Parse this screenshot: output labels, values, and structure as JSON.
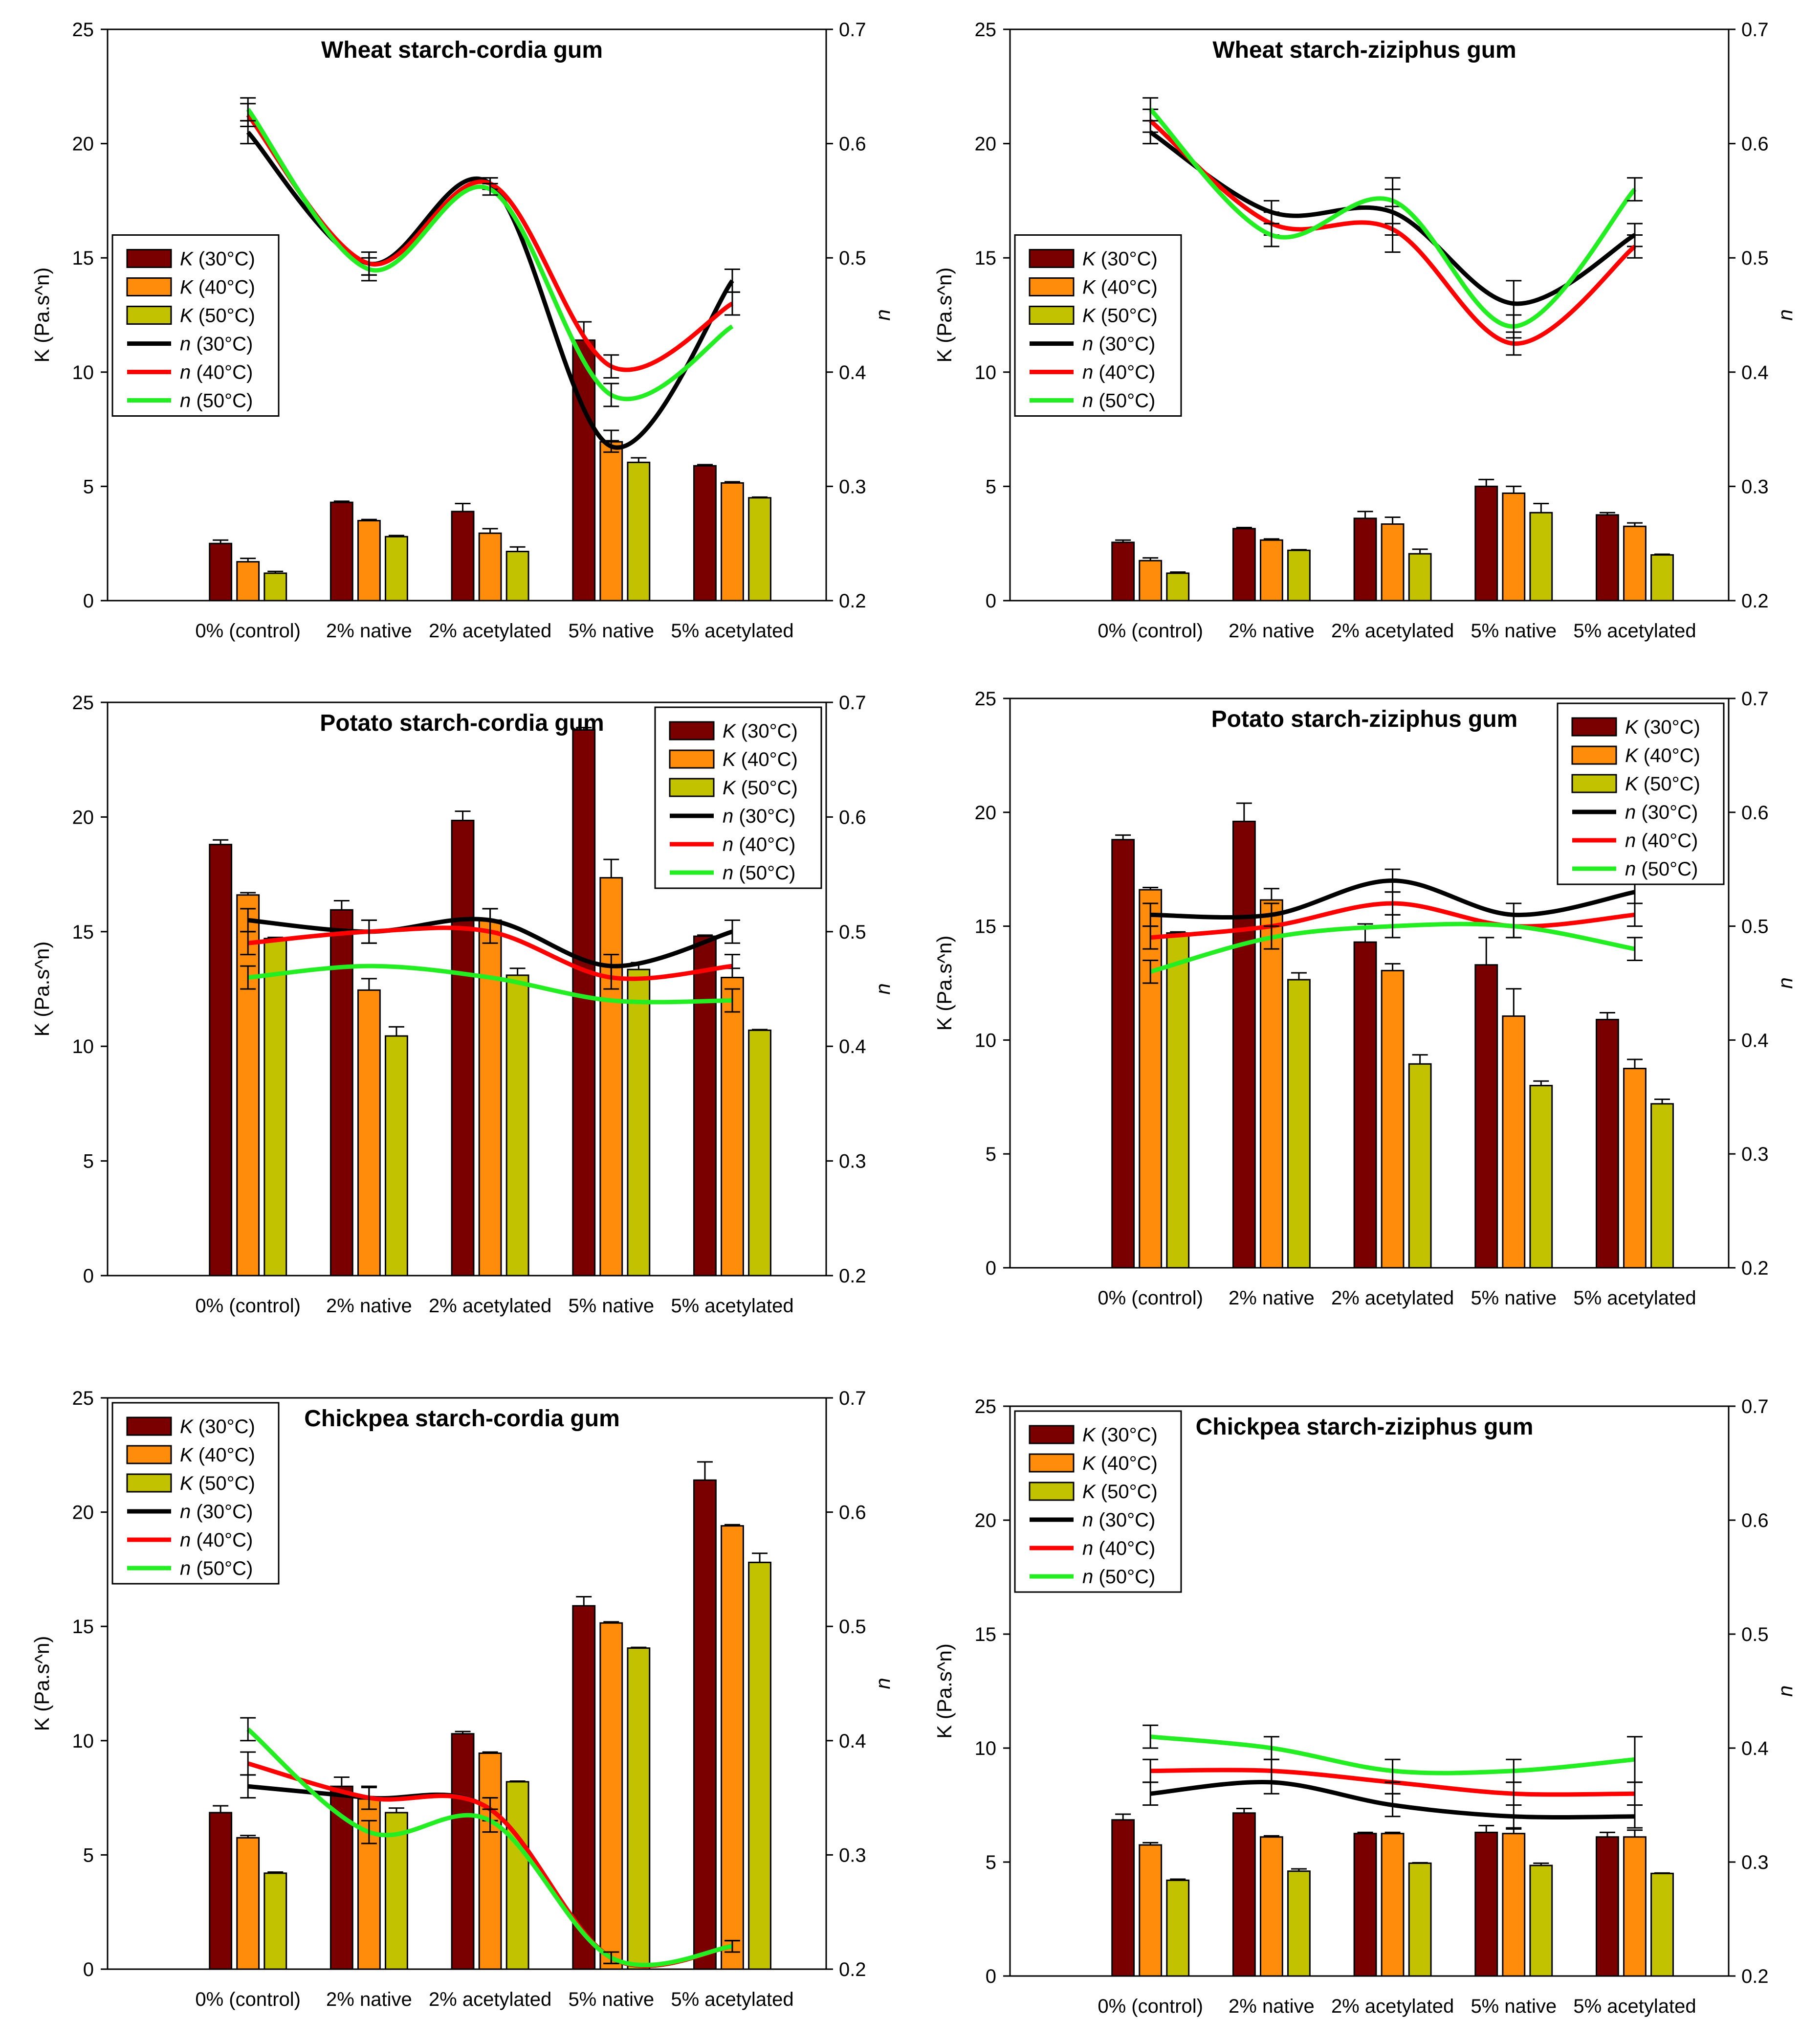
{
  "colors": {
    "k30": "#7a0000",
    "k40": "#ff8c0a",
    "k50": "#c2c200",
    "n30": "#000000",
    "n40": "#ff0000",
    "n50": "#22ee22"
  },
  "chart_data": [
    {
      "type": "bar",
      "title": "Wheat starch-cordia gum",
      "categories": [
        "0% (control)",
        "2% native",
        "2% acetylated",
        "5% native",
        "5% acetylated"
      ],
      "y_left_label": "K (Pa.s^n)",
      "y_right_label": "n",
      "ylim": [
        0,
        25
      ],
      "y_left_ticks": [
        "0",
        "5",
        "10",
        "15",
        "20",
        "25"
      ],
      "y2lim": [
        0.2,
        0.7
      ],
      "y_right_ticks": [
        "0.2",
        "0.3",
        "0.4",
        "0.5",
        "0.6",
        "0.7"
      ],
      "legend_position": "middle-left",
      "legend": [
        {
          "sym": "K",
          "label": " (30°C)"
        },
        {
          "sym": "K",
          "label": " (40°C)"
        },
        {
          "sym": "K",
          "label": " (50°C)"
        },
        {
          "sym": "n",
          "label": " (30°C)"
        },
        {
          "sym": "n",
          "label": " (40°C)"
        },
        {
          "sym": "n",
          "label": " (50°C)"
        }
      ],
      "bars": [
        {
          "name": "K (30°C)",
          "values": [
            2.5,
            4.3,
            3.9,
            11.4,
            5.9
          ],
          "err": [
            0.15,
            0.05,
            0.35,
            0.8,
            0.05
          ]
        },
        {
          "name": "K (40°C)",
          "values": [
            1.7,
            3.5,
            2.95,
            6.95,
            5.15
          ],
          "err": [
            0.15,
            0.05,
            0.2,
            0.5,
            0.05
          ]
        },
        {
          "name": "K (50°C)",
          "values": [
            1.2,
            2.8,
            2.15,
            6.05,
            4.5
          ],
          "err": [
            0.08,
            0.05,
            0.2,
            0.2,
            0.03
          ]
        }
      ],
      "n_series": [
        {
          "name": "n (30°C)",
          "values": [
            0.61,
            0.495,
            0.565,
            0.335,
            0.48
          ],
          "err": [
            0.01,
            0.01,
            0.005,
            0.005,
            0.01
          ]
        },
        {
          "name": "n (40°C)",
          "values": [
            0.625,
            0.495,
            0.565,
            0.405,
            0.46
          ],
          "err": [
            0.01,
            0.01,
            0.005,
            0.01,
            0.01
          ]
        },
        {
          "name": "n (50°C)",
          "values": [
            0.63,
            0.49,
            0.56,
            0.38,
            0.44
          ],
          "err": [
            0.01,
            0.01,
            0.005,
            0.01,
            0.0
          ]
        }
      ]
    },
    {
      "type": "bar",
      "title": "Wheat starch-ziziphus gum",
      "categories": [
        "0% (control)",
        "2% native",
        "2% acetylated",
        "5% native",
        "5% acetylated"
      ],
      "y_left_label": "K (Pa.s^n)",
      "y_right_label": "n",
      "ylim": [
        0,
        25
      ],
      "y_left_ticks": [
        "0",
        "5",
        "10",
        "15",
        "20",
        "25"
      ],
      "y2lim": [
        0.2,
        0.7
      ],
      "y_right_ticks": [
        "0.2",
        "0.3",
        "0.4",
        "0.5",
        "0.6",
        "0.7"
      ],
      "legend_position": "middle-left",
      "legend": [
        {
          "sym": "K",
          "label": " (30°C)"
        },
        {
          "sym": "K",
          "label": " (40°C)"
        },
        {
          "sym": "K",
          "label": " (50°C)"
        },
        {
          "sym": "n",
          "label": " (30°C)"
        },
        {
          "sym": "n",
          "label": " (40°C)"
        },
        {
          "sym": "n",
          "label": " (50°C)"
        }
      ],
      "bars": [
        {
          "name": "K (30°C)",
          "values": [
            2.55,
            3.15,
            3.6,
            5.0,
            3.75
          ],
          "err": [
            0.1,
            0.05,
            0.3,
            0.3,
            0.1
          ]
        },
        {
          "name": "K (40°C)",
          "values": [
            1.75,
            2.65,
            3.35,
            4.7,
            3.25
          ],
          "err": [
            0.12,
            0.05,
            0.3,
            0.3,
            0.15
          ]
        },
        {
          "name": "K (50°C)",
          "values": [
            1.2,
            2.2,
            2.05,
            3.85,
            2.0
          ],
          "err": [
            0.05,
            0.03,
            0.2,
            0.4,
            0.03
          ]
        }
      ],
      "n_series": [
        {
          "name": "n (30°C)",
          "values": [
            0.61,
            0.54,
            0.54,
            0.46,
            0.52
          ],
          "err": [
            0.01,
            0.01,
            0.02,
            0.02,
            0.01
          ]
        },
        {
          "name": "n (40°C)",
          "values": [
            0.62,
            0.53,
            0.525,
            0.425,
            0.51
          ],
          "err": [
            0.01,
            0.01,
            0.02,
            0.01,
            0.01
          ]
        },
        {
          "name": "n (50°C)",
          "values": [
            0.63,
            0.52,
            0.55,
            0.44,
            0.56
          ],
          "err": [
            0.01,
            0.01,
            0.02,
            0.01,
            0.01
          ]
        }
      ]
    },
    {
      "type": "bar",
      "title": "Potato starch-cordia gum",
      "categories": [
        "0% (control)",
        "2% native",
        "2% acetylated",
        "5% native",
        "5% acetylated"
      ],
      "y_left_label": "K (Pa.s^n)",
      "y_right_label": "n",
      "ylim": [
        0,
        25
      ],
      "y_left_ticks": [
        "0",
        "5",
        "10",
        "15",
        "20",
        "25"
      ],
      "y2lim": [
        0.2,
        0.7
      ],
      "y_right_ticks": [
        "0.2",
        "0.3",
        "0.4",
        "0.5",
        "0.6",
        "0.7"
      ],
      "legend_position": "top-right",
      "legend": [
        {
          "sym": "K",
          "label": " (30°C)"
        },
        {
          "sym": "K",
          "label": " (40°C)"
        },
        {
          "sym": "K",
          "label": " (50°C)"
        },
        {
          "sym": "n",
          "label": " (30°C)"
        },
        {
          "sym": "n",
          "label": " (40°C)"
        },
        {
          "sym": "n",
          "label": " (50°C)"
        }
      ],
      "bars": [
        {
          "name": "K (30°C)",
          "values": [
            18.8,
            15.95,
            19.85,
            23.8,
            14.8
          ],
          "err": [
            0.2,
            0.4,
            0.4,
            0.1,
            0.05
          ]
        },
        {
          "name": "K (40°C)",
          "values": [
            16.6,
            12.45,
            15.5,
            17.35,
            13.0
          ],
          "err": [
            0.1,
            0.5,
            0.5,
            0.8,
            0.4
          ]
        },
        {
          "name": "K (50°C)",
          "values": [
            14.7,
            10.45,
            13.1,
            13.35,
            10.7
          ],
          "err": [
            0.05,
            0.4,
            0.3,
            0.3,
            0.03
          ]
        }
      ],
      "n_series": [
        {
          "name": "n (30°C)",
          "values": [
            0.51,
            0.5,
            0.51,
            0.47,
            0.5
          ],
          "err": [
            0.01,
            0.01,
            0.01,
            0.01,
            0.01
          ]
        },
        {
          "name": "n (40°C)",
          "values": [
            0.49,
            0.5,
            0.5,
            0.46,
            0.47
          ],
          "err": [
            0.01,
            0.01,
            0.01,
            0.01,
            0.01
          ]
        },
        {
          "name": "n (50°C)",
          "values": [
            0.46,
            0.47,
            0.46,
            0.44,
            0.44
          ],
          "err": [
            0.01,
            0.0,
            0.0,
            0.0,
            0.01
          ]
        }
      ]
    },
    {
      "type": "bar",
      "title": "Potato starch-ziziphus gum",
      "categories": [
        "0% (control)",
        "2% native",
        "2% acetylated",
        "5% native",
        "5% acetylated"
      ],
      "y_left_label": "K (Pa.s^n)",
      "y_right_label": "n",
      "ylim": [
        0,
        25
      ],
      "y_left_ticks": [
        "0",
        "5",
        "10",
        "15",
        "20",
        "25"
      ],
      "y2lim": [
        0.2,
        0.7
      ],
      "y_right_ticks": [
        "0.2",
        "0.3",
        "0.4",
        "0.5",
        "0.6",
        "0.7"
      ],
      "legend_position": "top-right",
      "legend": [
        {
          "sym": "K",
          "label": " (30°C)"
        },
        {
          "sym": "K",
          "label": " (40°C)"
        },
        {
          "sym": "K",
          "label": " (50°C)"
        },
        {
          "sym": "n",
          "label": " (30°C)"
        },
        {
          "sym": "n",
          "label": " (40°C)"
        },
        {
          "sym": "n",
          "label": " (50°C)"
        }
      ],
      "bars": [
        {
          "name": "K (30°C)",
          "values": [
            18.8,
            19.6,
            14.3,
            13.3,
            10.9
          ],
          "err": [
            0.2,
            0.8,
            0.8,
            1.2,
            0.3
          ]
        },
        {
          "name": "K (40°C)",
          "values": [
            16.6,
            16.15,
            13.05,
            11.05,
            8.75
          ],
          "err": [
            0.1,
            0.5,
            0.3,
            1.2,
            0.4
          ]
        },
        {
          "name": "K (50°C)",
          "values": [
            14.7,
            12.65,
            8.95,
            8.0,
            7.2
          ],
          "err": [
            0.05,
            0.3,
            0.4,
            0.2,
            0.2
          ]
        }
      ],
      "n_series": [
        {
          "name": "n (30°C)",
          "values": [
            0.51,
            0.51,
            0.54,
            0.51,
            0.53
          ],
          "err": [
            0.01,
            0.01,
            0.01,
            0.01,
            0.01
          ]
        },
        {
          "name": "n (40°C)",
          "values": [
            0.49,
            0.5,
            0.52,
            0.5,
            0.51
          ],
          "err": [
            0.01,
            0.01,
            0.01,
            0.01,
            0.01
          ]
        },
        {
          "name": "n (50°C)",
          "values": [
            0.46,
            0.49,
            0.5,
            0.5,
            0.48
          ],
          "err": [
            0.01,
            0.01,
            0.01,
            0.01,
            0.01
          ]
        }
      ]
    },
    {
      "type": "bar",
      "title": "Chickpea starch-cordia gum",
      "categories": [
        "0% (control)",
        "2% native",
        "2% acetylated",
        "5% native",
        "5% acetylated"
      ],
      "y_left_label": "K (Pa.s^n)",
      "y_right_label": "n",
      "ylim": [
        0,
        25
      ],
      "y_left_ticks": [
        "0",
        "5",
        "10",
        "15",
        "20",
        "25"
      ],
      "y2lim": [
        0.2,
        0.7
      ],
      "y_right_ticks": [
        "0.2",
        "0.3",
        "0.4",
        "0.5",
        "0.6",
        "0.7"
      ],
      "legend_position": "top-left",
      "legend": [
        {
          "sym": "K",
          "label": " (30°C)"
        },
        {
          "sym": "K",
          "label": " (40°C)"
        },
        {
          "sym": "K",
          "label": " (50°C)"
        },
        {
          "sym": "n",
          "label": " (30°C)"
        },
        {
          "sym": "n",
          "label": " (40°C)"
        },
        {
          "sym": "n",
          "label": " (50°C)"
        }
      ],
      "bars": [
        {
          "name": "K (30°C)",
          "values": [
            6.85,
            8.0,
            10.3,
            15.9,
            21.4
          ],
          "err": [
            0.3,
            0.4,
            0.1,
            0.4,
            0.8
          ]
        },
        {
          "name": "K (40°C)",
          "values": [
            5.75,
            7.45,
            9.45,
            15.15,
            19.4
          ],
          "err": [
            0.1,
            0.5,
            0.05,
            0.05,
            0.05
          ]
        },
        {
          "name": "K (50°C)",
          "values": [
            4.2,
            6.85,
            8.2,
            14.05,
            17.8
          ],
          "err": [
            0.05,
            0.2,
            0.03,
            0.03,
            0.4
          ]
        }
      ],
      "n_series": [
        {
          "name": "n (30°C)",
          "values": [
            0.36,
            0.35,
            0.34,
            0.21,
            0.22
          ],
          "err": [
            0.01,
            0.01,
            0.01,
            0.005,
            0.005
          ]
        },
        {
          "name": "n (40°C)",
          "values": [
            0.38,
            0.35,
            0.34,
            0.21,
            0.22
          ],
          "err": [
            0.01,
            0.01,
            0.01,
            0.005,
            0.005
          ]
        },
        {
          "name": "n (50°C)",
          "values": [
            0.41,
            0.32,
            0.33,
            0.21,
            0.22
          ],
          "err": [
            0.01,
            0.01,
            0.01,
            0.005,
            0.005
          ]
        }
      ]
    },
    {
      "type": "bar",
      "title": "Chickpea starch-ziziphus gum",
      "categories": [
        "0% (control)",
        "2% native",
        "2% acetylated",
        "5% native",
        "5% acetylated"
      ],
      "y_left_label": "K (Pa.s^n)",
      "y_right_label": "n",
      "ylim": [
        0,
        25
      ],
      "y_left_ticks": [
        "0",
        "5",
        "10",
        "15",
        "20",
        "25"
      ],
      "y2lim": [
        0.2,
        0.7
      ],
      "y_right_ticks": [
        "0.2",
        "0.3",
        "0.4",
        "0.5",
        "0.6",
        "0.7"
      ],
      "legend_position": "top-left",
      "legend": [
        {
          "sym": "K",
          "label": " (30°C)"
        },
        {
          "sym": "K",
          "label": " (40°C)"
        },
        {
          "sym": "K",
          "label": " (50°C)"
        },
        {
          "sym": "n",
          "label": " (30°C)"
        },
        {
          "sym": "n",
          "label": " (40°C)"
        },
        {
          "sym": "n",
          "label": " (50°C)"
        }
      ],
      "bars": [
        {
          "name": "K (30°C)",
          "values": [
            6.85,
            7.15,
            6.25,
            6.3,
            6.1
          ],
          "err": [
            0.25,
            0.2,
            0.05,
            0.3,
            0.2
          ]
        },
        {
          "name": "K (40°C)",
          "values": [
            5.75,
            6.1,
            6.25,
            6.25,
            6.1
          ],
          "err": [
            0.1,
            0.05,
            0.05,
            0.2,
            0.3
          ]
        },
        {
          "name": "K (50°C)",
          "values": [
            4.2,
            4.6,
            4.95,
            4.85,
            4.5
          ],
          "err": [
            0.05,
            0.1,
            0.02,
            0.1,
            0.02
          ]
        }
      ],
      "n_series": [
        {
          "name": "n (30°C)",
          "values": [
            0.36,
            0.37,
            0.35,
            0.34,
            0.34
          ],
          "err": [
            0.01,
            0.01,
            0.01,
            0.01,
            0.01
          ]
        },
        {
          "name": "n (40°C)",
          "values": [
            0.38,
            0.38,
            0.37,
            0.36,
            0.36
          ],
          "err": [
            0.01,
            0.01,
            0.01,
            0.01,
            0.01
          ]
        },
        {
          "name": "n (50°C)",
          "values": [
            0.41,
            0.4,
            0.38,
            0.38,
            0.39
          ],
          "err": [
            0.01,
            0.01,
            0.01,
            0.01,
            0.02
          ]
        }
      ]
    }
  ]
}
